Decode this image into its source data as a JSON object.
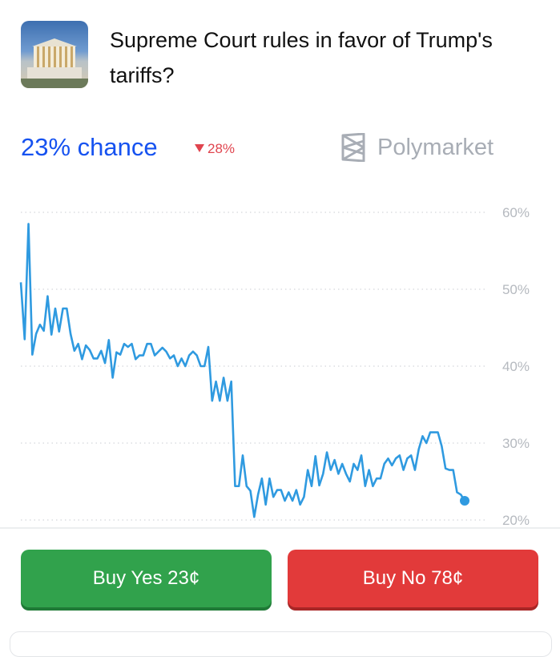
{
  "market": {
    "title": "Supreme Court rules in favor of Trump's tariffs?",
    "chance_label": "23% chance",
    "change_label": "28%",
    "change_direction": "down",
    "brand": "Polymarket"
  },
  "buttons": {
    "yes_label": "Buy Yes 23¢",
    "no_label": "Buy No 78¢"
  },
  "colors": {
    "accent": "#1652f0",
    "line": "#2f9ae0",
    "yes": "#31a24c",
    "no": "#e23a3a",
    "down": "#e0444e"
  },
  "chart_data": {
    "type": "line",
    "y_ticks": [
      "60%",
      "50%",
      "40%",
      "30%",
      "20%"
    ],
    "ylim": [
      20,
      60
    ],
    "grid": true,
    "series": [
      {
        "values": [
          50.9,
          43.5,
          58.5,
          41.5,
          44.2,
          45.4,
          44.6,
          49.1,
          44.1,
          47.5,
          44.5,
          47.5,
          47.5,
          44.2,
          42,
          42.9,
          40.9,
          42.7,
          42.1,
          41,
          41,
          42,
          40.4,
          43.4,
          38.5,
          41.8,
          41.5,
          42.9,
          42.5,
          42.9,
          40.9,
          41.4,
          41.4,
          42.9,
          42.9,
          41.4,
          41.9,
          42.4,
          41.9,
          41,
          41.4,
          40,
          41,
          40,
          41.4,
          41.9,
          41.4,
          40,
          40,
          42.5,
          35.5,
          38,
          35.5,
          38.5,
          35.5,
          38,
          24.4,
          24.4,
          28.4,
          24.4,
          23.8,
          20.4,
          23.3,
          25.4,
          22,
          25.4,
          23,
          23.9,
          23.9,
          22.5,
          23.6,
          22.5,
          23.9,
          22,
          23,
          26.5,
          24.4,
          28.3,
          24.5,
          26,
          28.8,
          26.5,
          27.8,
          26,
          27.3,
          26,
          25,
          27.3,
          26.5,
          28.4,
          24.4,
          26.5,
          24.4,
          25.4,
          25.4,
          27.3,
          28,
          27.1,
          28,
          28.4,
          26.5,
          28,
          28.4,
          26.5,
          29.2,
          30.9,
          30,
          31.4,
          31.4,
          31.4,
          29.6,
          26.7,
          26.5,
          26.5,
          23.6,
          23.3,
          22.5
        ]
      }
    ]
  }
}
